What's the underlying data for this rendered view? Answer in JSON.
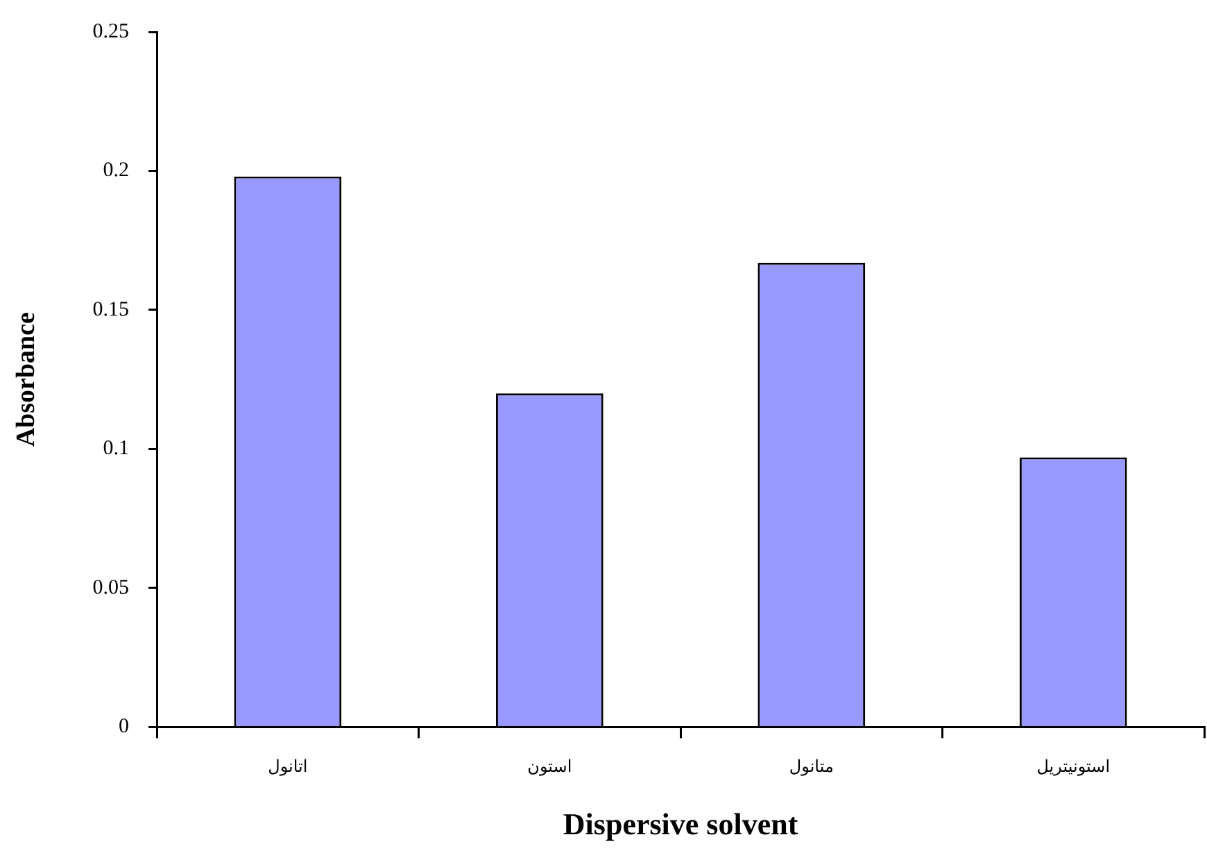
{
  "chart_data": {
    "type": "bar",
    "xlabel": "Dispersive solvent",
    "ylabel": "Absorbance",
    "categories": [
      "اتانول",
      "استون",
      "متانول",
      "استونیتریل"
    ],
    "values": [
      0.198,
      0.12,
      0.167,
      0.097
    ],
    "color": "#9999ff",
    "ylim": [
      0,
      0.25
    ],
    "yticks": [
      0,
      0.05,
      0.1,
      0.15,
      0.2,
      0.25
    ],
    "grid": false,
    "legend": false
  }
}
